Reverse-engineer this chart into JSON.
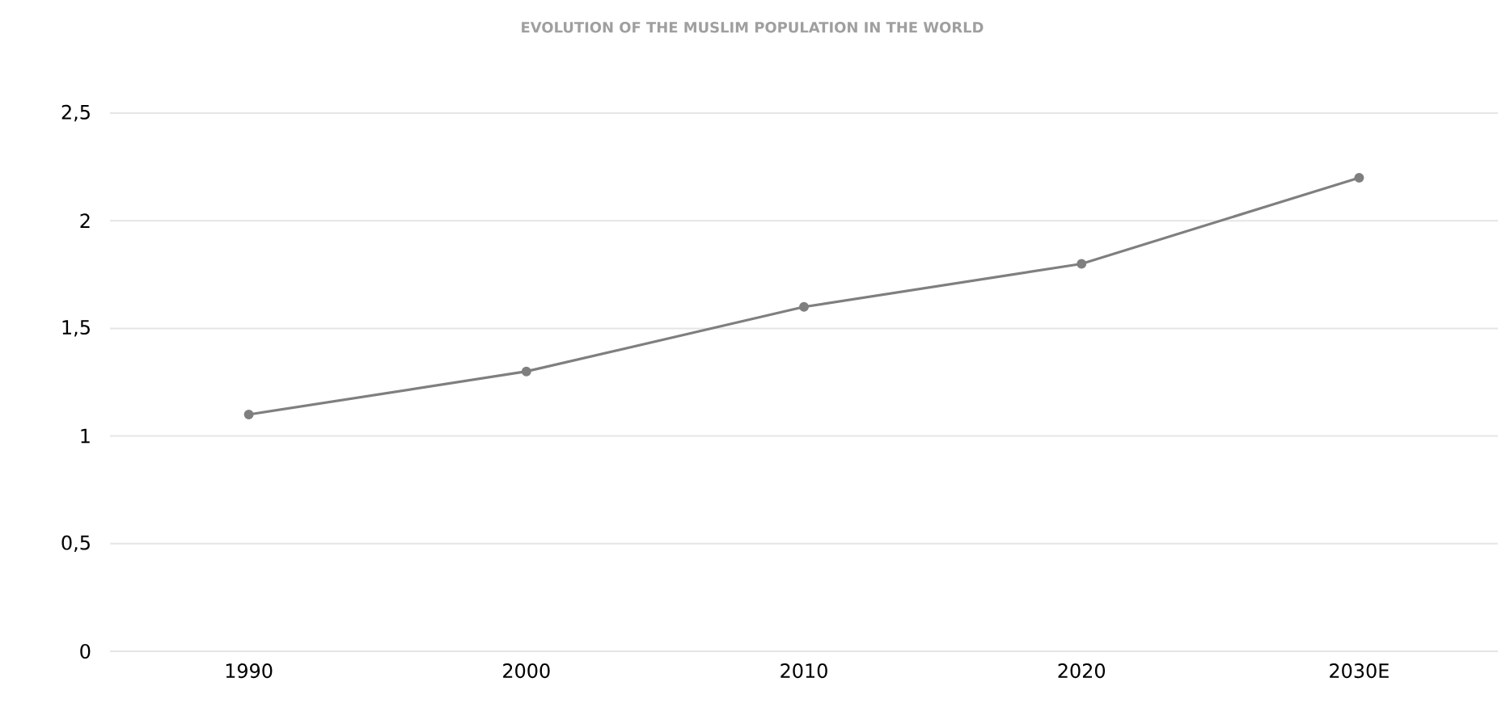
{
  "chart_data": {
    "type": "line",
    "title": "EVOLUTION OF THE MUSLIM POPULATION IN THE WORLD",
    "categories": [
      "1990",
      "2000",
      "2010",
      "2020",
      "2030E"
    ],
    "values": [
      1.1,
      1.3,
      1.6,
      1.8,
      2.2
    ],
    "color": "#7f7f7f",
    "marker": "circle",
    "line_style": "solid",
    "ylim": [
      0,
      2.5
    ],
    "yticks": [
      0,
      {
        "value": 0.5,
        "label": "0,5"
      },
      1,
      {
        "value": 1.5,
        "label": "1,5"
      },
      2,
      {
        "value": 2.5,
        "label": "2,5"
      }
    ],
    "grid": "y"
  }
}
